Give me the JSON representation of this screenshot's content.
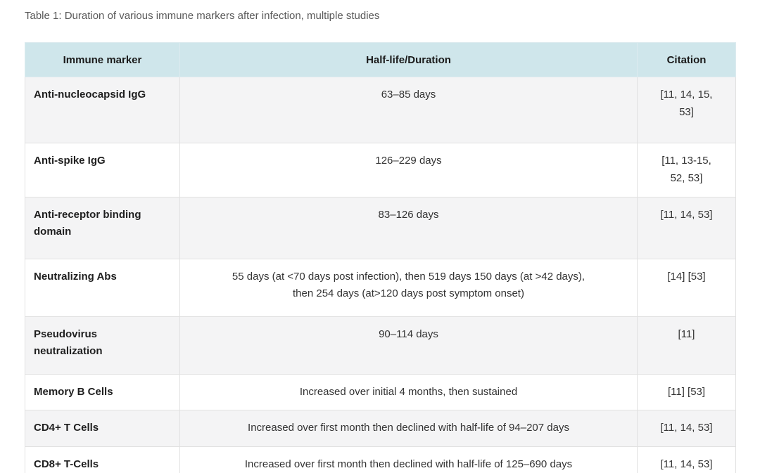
{
  "page": {
    "caption": "Table 1: Duration of various immune markers after infection, multiple studies"
  },
  "colors": {
    "header_bg": "#cfe6eb",
    "row_alt_bg": "#f4f4f5",
    "row_bg": "#ffffff",
    "border": "#e1e1e1",
    "caption_text": "#595959",
    "body_text": "#333333"
  },
  "table": {
    "columns": [
      "Immune marker",
      "Half-life/Duration",
      "Citation"
    ],
    "rows": [
      {
        "marker": "Anti-nucleocapsid IgG",
        "duration": "63–85 days",
        "citation": "[11, 14, 15, 53]"
      },
      {
        "marker": "Anti-spike IgG",
        "duration": "126–229 days",
        "citation": "[11, 13-15, 52, 53]"
      },
      {
        "marker": "Anti-receptor binding domain",
        "duration": "83–126 days",
        "citation": "[11, 14, 53]"
      },
      {
        "marker": "Neutralizing Abs",
        "duration": "55 days (at <70 days post infection), then 519 days 150 days (at >42 days), then 254 days (at>120 days post symptom onset)",
        "citation": "[14] [53]"
      },
      {
        "marker": "Pseudovirus neutralization",
        "duration": "90–114 days",
        "citation": "[11]"
      },
      {
        "marker": "Memory B Cells",
        "duration": "Increased over initial 4 months, then sustained",
        "citation": "[11] [53]"
      },
      {
        "marker": "CD4+ T Cells",
        "duration": "Increased over first month then declined with half-life of 94–207 days",
        "citation": "[11, 14, 53]"
      },
      {
        "marker": "CD8+ T-Cells",
        "duration": "Increased over first month then declined with half-life of 125–690 days",
        "citation": "[11, 14, 53]"
      }
    ]
  }
}
